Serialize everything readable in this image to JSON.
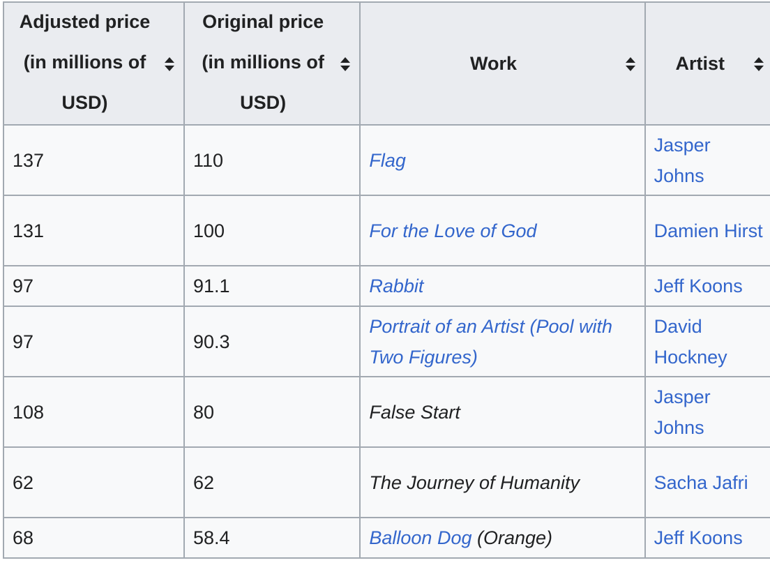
{
  "table": {
    "headers": [
      {
        "line1": "Adjusted price",
        "line2": "(in millions of",
        "line3": "USD)",
        "sort_icon": "sort-updown-icon"
      },
      {
        "line1": "Original price",
        "line2": "(in millions of",
        "line3": "USD)",
        "sort_icon": "sort-updown-icon"
      },
      {
        "line1": "Work",
        "sort_icon": "sort-updown-icon"
      },
      {
        "line1": "Artist",
        "sort_icon": "sort-updown-icon"
      }
    ],
    "rows": [
      {
        "adjusted": "137",
        "original": "110",
        "work": "Flag",
        "work_suffix": "",
        "artist": "Jasper Johns"
      },
      {
        "adjusted": "131",
        "original": "100",
        "work": "For the Love of God",
        "work_suffix": "",
        "artist": "Damien Hirst"
      },
      {
        "adjusted": "97",
        "original": "91.1",
        "work": "Rabbit",
        "work_suffix": "",
        "artist": "Jeff Koons"
      },
      {
        "adjusted": "97",
        "original": "90.3",
        "work": "Portrait of an Artist (Pool with Two Figures)",
        "work_suffix": "",
        "artist": "David Hockney"
      },
      {
        "adjusted": "108",
        "original": "80",
        "work": "False Start",
        "work_suffix": "",
        "artist": "Jasper Johns"
      },
      {
        "adjusted": "62",
        "original": "62",
        "work": "The Journey of Humanity",
        "work_suffix": "",
        "artist": "Sacha Jafri"
      },
      {
        "adjusted": "68",
        "original": "58.4",
        "work": "Balloon Dog",
        "work_suffix": " (Orange)",
        "artist": "Jeff Koons"
      }
    ]
  },
  "colors": {
    "link": "#3366cc",
    "header_bg": "#eaecf0",
    "cell_bg": "#f8f9fa",
    "border": "#a2a9b1",
    "text": "#202122"
  }
}
